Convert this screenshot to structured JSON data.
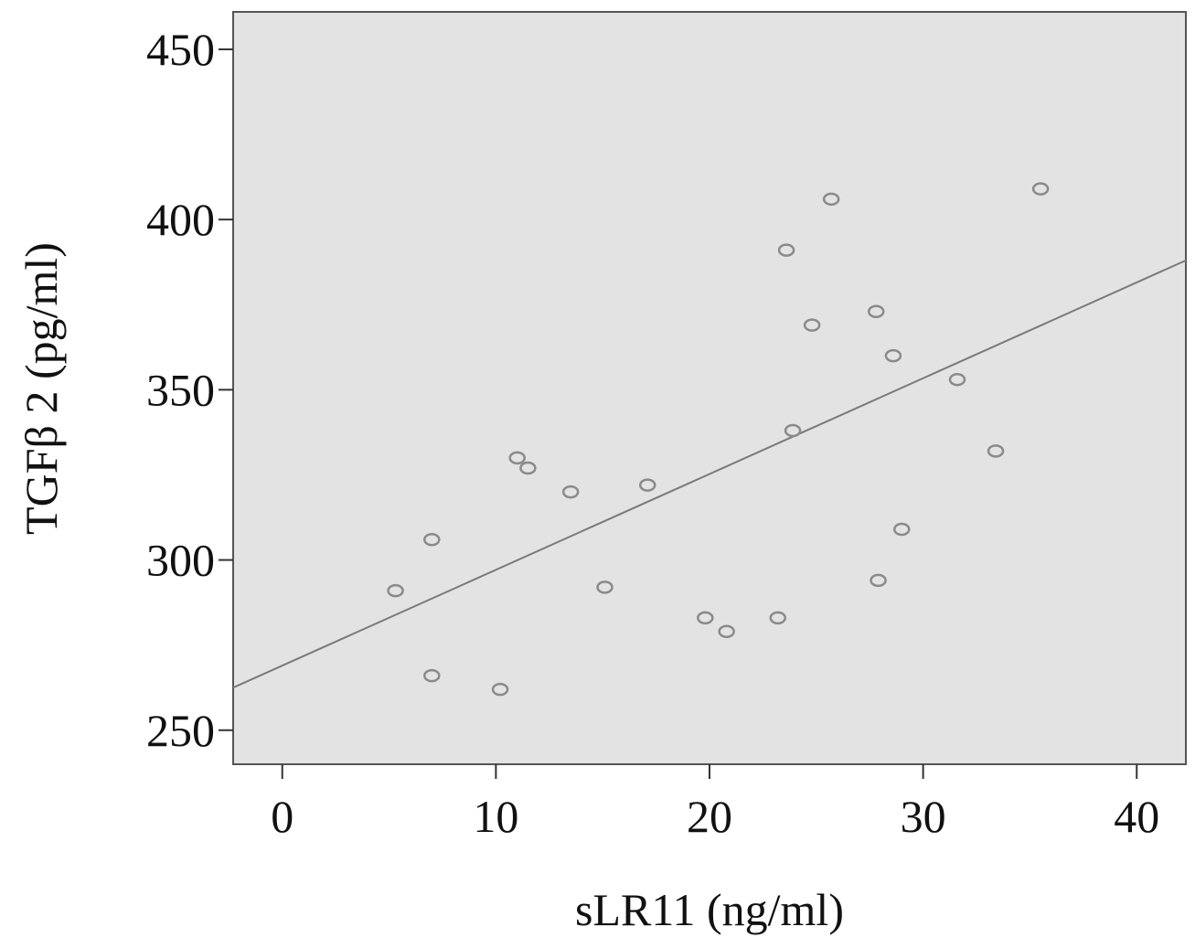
{
  "chart_data": {
    "type": "scatter",
    "title": "",
    "xlabel": "sLR11 (ng/ml)",
    "ylabel": "TGFβ 2 (pg/ml)",
    "xlim": [
      -2.3,
      42.3
    ],
    "ylim": [
      240,
      461
    ],
    "xticks": [
      0,
      10,
      20,
      30,
      40
    ],
    "yticks": [
      250,
      300,
      350,
      400,
      450
    ],
    "grid": false,
    "legend": "none",
    "colors": {
      "plot_background": "#e3e3e3",
      "frame": "#555555",
      "marker": "#8a8a8a",
      "fit_line": "#7a7a7a"
    },
    "series": [
      {
        "points": [
          [
            5.3,
            291
          ],
          [
            7.0,
            306
          ],
          [
            7.0,
            266
          ],
          [
            10.2,
            262
          ],
          [
            11.0,
            330
          ],
          [
            11.5,
            327
          ],
          [
            13.5,
            320
          ],
          [
            15.1,
            292
          ],
          [
            17.1,
            322
          ],
          [
            19.8,
            283
          ],
          [
            20.8,
            279
          ],
          [
            23.2,
            283
          ],
          [
            23.6,
            391
          ],
          [
            23.9,
            338
          ],
          [
            24.8,
            369
          ],
          [
            25.7,
            406
          ],
          [
            27.8,
            373
          ],
          [
            27.9,
            294
          ],
          [
            28.6,
            360
          ],
          [
            29.0,
            309
          ],
          [
            31.6,
            353
          ],
          [
            33.4,
            332
          ],
          [
            35.5,
            409
          ]
        ]
      }
    ],
    "fit_line": {
      "x": [
        -2.3,
        42.3
      ],
      "y": [
        262.5,
        388
      ]
    }
  }
}
